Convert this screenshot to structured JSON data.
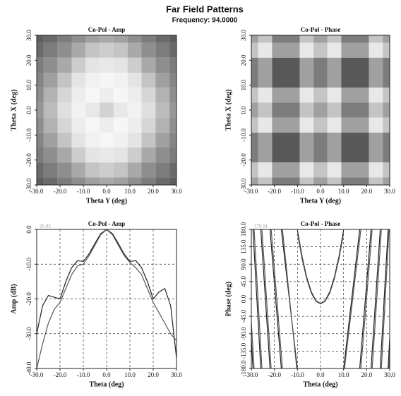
{
  "title": "Far Field Patterns",
  "subtitle": "Frequency: 94.0000",
  "chart_data": [
    {
      "type": "heatmap",
      "title": "Co-Pol - Amp",
      "xlabel": "Theta Y (deg)",
      "ylabel": "Theta X (deg)",
      "x": [
        -30,
        -24,
        -18,
        -12,
        -6,
        0,
        6,
        12,
        18,
        24,
        30
      ],
      "y": [
        30,
        24,
        18,
        12,
        6,
        0,
        -6,
        -12,
        -18,
        -24,
        -30
      ],
      "z": [
        [
          -35,
          -32,
          -28,
          -24,
          -20,
          -18,
          -20,
          -24,
          -28,
          -32,
          -35
        ],
        [
          -32,
          -28,
          -24,
          -18,
          -12,
          -10,
          -12,
          -18,
          -24,
          -28,
          -32
        ],
        [
          -28,
          -24,
          -18,
          -10,
          -5,
          -4,
          -5,
          -10,
          -18,
          -24,
          -28
        ],
        [
          -26,
          -20,
          -12,
          -5,
          -2,
          -1,
          -2,
          -5,
          -12,
          -20,
          -26
        ],
        [
          -24,
          -16,
          -8,
          -3,
          -1,
          -3,
          -1,
          -3,
          -8,
          -16,
          -24
        ],
        [
          -22,
          -14,
          -6,
          -2,
          -4,
          -9,
          -4,
          -2,
          -6,
          -14,
          -22
        ],
        [
          -24,
          -16,
          -8,
          -3,
          -1,
          -3,
          -1,
          -3,
          -8,
          -16,
          -24
        ],
        [
          -26,
          -20,
          -12,
          -5,
          -2,
          -1,
          -2,
          -5,
          -12,
          -20,
          -26
        ],
        [
          -28,
          -24,
          -18,
          -10,
          -5,
          -4,
          -5,
          -10,
          -18,
          -24,
          -28
        ],
        [
          -32,
          -28,
          -24,
          -18,
          -12,
          -10,
          -12,
          -18,
          -24,
          -28,
          -32
        ],
        [
          -35,
          -32,
          -28,
          -24,
          -20,
          -18,
          -20,
          -24,
          -28,
          -32,
          -35
        ]
      ],
      "zlim": [
        -40,
        0
      ],
      "xlim": [
        -30,
        30
      ],
      "ylim": [
        -30,
        30
      ],
      "xticks": [
        {
          "value": -30,
          "label": "-30.0"
        },
        {
          "value": -20,
          "label": "-20.0"
        },
        {
          "value": -10,
          "label": "-10.0"
        },
        {
          "value": 0,
          "label": "0.0"
        },
        {
          "value": 10,
          "label": "10.0"
        },
        {
          "value": 20,
          "label": "20.0"
        },
        {
          "value": 30,
          "label": "30.0"
        }
      ],
      "yticks": [
        {
          "value": -30,
          "label": "-30.0"
        },
        {
          "value": -20,
          "label": "-20.0"
        },
        {
          "value": -10,
          "label": "-10.0"
        },
        {
          "value": 0,
          "label": "0.0"
        },
        {
          "value": 10,
          "label": "10.0"
        },
        {
          "value": 20,
          "label": "20.0"
        },
        {
          "value": 30,
          "label": "30.0"
        }
      ]
    },
    {
      "type": "heatmap",
      "title": "Co-Pol - Phase",
      "xlabel": "Theta Y (deg)",
      "ylabel": "Theta X (deg)",
      "x": [
        -30,
        -24,
        -18,
        -12,
        -6,
        0,
        6,
        12,
        18,
        24,
        30
      ],
      "y": [
        30,
        24,
        18,
        12,
        6,
        0,
        -6,
        -12,
        -18,
        -24,
        -30
      ],
      "z": [
        [
          0,
          72,
          -72,
          -72,
          72,
          0,
          72,
          -72,
          -72,
          72,
          0
        ],
        [
          72,
          144,
          0,
          0,
          144,
          72,
          144,
          0,
          0,
          144,
          72
        ],
        [
          -72,
          0,
          -144,
          -144,
          0,
          -72,
          0,
          -144,
          -144,
          0,
          -72
        ],
        [
          -72,
          0,
          -144,
          -144,
          0,
          -72,
          0,
          -144,
          -144,
          0,
          -72
        ],
        [
          72,
          144,
          0,
          0,
          144,
          72,
          144,
          0,
          0,
          144,
          72
        ],
        [
          0,
          72,
          -72,
          -72,
          72,
          0,
          72,
          -72,
          -72,
          72,
          0
        ],
        [
          72,
          144,
          0,
          0,
          144,
          72,
          144,
          0,
          0,
          144,
          72
        ],
        [
          -72,
          0,
          -144,
          -144,
          0,
          -72,
          0,
          -144,
          -144,
          0,
          -72
        ],
        [
          -72,
          0,
          -144,
          -144,
          0,
          -72,
          0,
          -144,
          -144,
          0,
          -72
        ],
        [
          72,
          144,
          0,
          0,
          144,
          72,
          144,
          0,
          0,
          144,
          72
        ],
        [
          0,
          72,
          -72,
          -72,
          72,
          0,
          72,
          -72,
          -72,
          72,
          0
        ]
      ],
      "zlim": [
        -180,
        180
      ],
      "xlim": [
        -30,
        30
      ],
      "ylim": [
        -30,
        30
      ],
      "xticks": [
        {
          "value": -30,
          "label": "-30.0"
        },
        {
          "value": -20,
          "label": "-20.0"
        },
        {
          "value": -10,
          "label": "-10.0"
        },
        {
          "value": 0,
          "label": "0.0"
        },
        {
          "value": 10,
          "label": "10.0"
        },
        {
          "value": 20,
          "label": "20.0"
        },
        {
          "value": 30,
          "label": "30.0"
        }
      ],
      "yticks": [
        {
          "value": -30,
          "label": "-30.0"
        },
        {
          "value": -20,
          "label": "-20.0"
        },
        {
          "value": -10,
          "label": "-10.0"
        },
        {
          "value": 0,
          "label": "0.0"
        },
        {
          "value": 10,
          "label": "10.0"
        },
        {
          "value": 20,
          "label": "20.0"
        },
        {
          "value": 30,
          "label": "30.0"
        }
      ]
    },
    {
      "type": "line",
      "title": "Co-Pol - Amp",
      "xlabel": "Theta (deg)",
      "ylabel": "Amp (dB)",
      "annotation": "26.93",
      "grid": true,
      "x": [
        -30,
        -27.5,
        -25,
        -22.5,
        -20,
        -17.5,
        -15,
        -12.5,
        -10,
        -7.5,
        -5,
        -2.5,
        0,
        2.5,
        5,
        7.5,
        10,
        12.5,
        15,
        17.5,
        20,
        22.5,
        25,
        27.5,
        30
      ],
      "series": [
        {
          "color": "#222222",
          "values": [
            -30,
            -22,
            -19,
            -19.5,
            -20,
            -15,
            -11,
            -9,
            -9.2,
            -7,
            -4,
            -1.2,
            0,
            -1.2,
            -4,
            -7,
            -9.2,
            -9,
            -11,
            -15,
            -20,
            -18,
            -17,
            -22,
            -37
          ]
        },
        {
          "color": "#555555",
          "values": [
            -40,
            -33,
            -27,
            -23,
            -21,
            -17,
            -13,
            -10.5,
            -10,
            -7.5,
            -4.5,
            -1.5,
            0,
            -1.5,
            -4.5,
            -7.5,
            -9.5,
            -11,
            -13,
            -17,
            -21,
            -24,
            -27,
            -30,
            -32
          ]
        }
      ],
      "xlim": [
        -30,
        30
      ],
      "ylim": [
        -40,
        0
      ],
      "xticks": [
        {
          "value": -30,
          "label": "-30.0"
        },
        {
          "value": -20,
          "label": "-20.0"
        },
        {
          "value": -10,
          "label": "-10.0"
        },
        {
          "value": 0,
          "label": "0.0"
        },
        {
          "value": 10,
          "label": "10.0"
        },
        {
          "value": 20,
          "label": "20.0"
        },
        {
          "value": 30,
          "label": "30.0"
        }
      ],
      "yticks": [
        {
          "value": -40,
          "label": "-40.0"
        },
        {
          "value": -30,
          "label": "-30.0"
        },
        {
          "value": -20,
          "label": "-20.0"
        },
        {
          "value": -10,
          "label": "-10.0"
        },
        {
          "value": 0,
          "label": "0.0"
        }
      ]
    },
    {
      "type": "line",
      "title": "Co-Pol - Phase",
      "xlabel": "Theta (deg)",
      "ylabel": "Phase (deg)",
      "annotation": "179.91",
      "grid": true,
      "series": [
        {
          "color": "#222222",
          "x": [
            -30,
            -29.3,
            -29.3,
            -29.3,
            -25.9,
            -25.9,
            -25.9,
            -21.9,
            -21.9,
            -21.9,
            -17,
            -17,
            -17,
            -10.05,
            -10.05,
            -10,
            -8,
            -6,
            -4,
            -2,
            0,
            2,
            4,
            6,
            8,
            10,
            10.05,
            10.05,
            17,
            17,
            17,
            21.9,
            21.9,
            21.9,
            25.9,
            25.9,
            25.9,
            29.3,
            29.3,
            29.3,
            30
          ],
          "values": [
            -102,
            -180,
            null,
            180,
            -180,
            null,
            180,
            -180,
            null,
            180,
            -180,
            null,
            180,
            -180,
            null,
            178,
            109.6,
            56.4,
            18.4,
            -4.4,
            -12,
            -4.4,
            18.4,
            56.4,
            109.6,
            178,
            null,
            -180,
            180,
            null,
            -180,
            180,
            null,
            -180,
            180,
            null,
            -180,
            180,
            null,
            -180,
            -102
          ]
        },
        {
          "color": "#555555",
          "x": [
            -30,
            -28.8,
            -28.8,
            -28.8,
            -25.4,
            -25.4,
            -25.4,
            -21.4,
            -21.4,
            -21.4,
            -16.5,
            -16.5,
            -16.5,
            -10.3,
            -10.3,
            -10,
            -8,
            -6,
            -4,
            -2,
            0,
            2,
            4,
            6,
            8,
            10,
            10.4,
            10.4,
            17.5,
            17.5,
            17.5,
            22.4,
            22.4,
            22.4,
            26.4,
            26.4,
            26.4,
            29.7,
            29.7,
            29.7,
            30
          ],
          "values": [
            -60,
            -180,
            null,
            180,
            -180,
            null,
            180,
            -180,
            null,
            180,
            -180,
            null,
            180,
            -180,
            null,
            170,
            104,
            52,
            15,
            -6,
            -13,
            -6,
            15,
            52,
            104,
            170,
            null,
            -180,
            180,
            null,
            -180,
            180,
            null,
            -180,
            180,
            null,
            -180,
            180,
            null,
            -180,
            -140
          ]
        }
      ],
      "xlim": [
        -30,
        30
      ],
      "ylim": [
        -180,
        180
      ],
      "xticks": [
        {
          "value": -30,
          "label": "-30.0"
        },
        {
          "value": -20,
          "label": "-20.0"
        },
        {
          "value": -10,
          "label": "-10.0"
        },
        {
          "value": 0,
          "label": "0.0"
        },
        {
          "value": 10,
          "label": "10.0"
        },
        {
          "value": 20,
          "label": "20.0"
        },
        {
          "value": 30,
          "label": "30.0"
        }
      ],
      "yticks": [
        {
          "value": -180,
          "label": "-180.0"
        },
        {
          "value": -135,
          "label": "-135.0"
        },
        {
          "value": -90,
          "label": "-90.0"
        },
        {
          "value": -45,
          "label": "-45.0"
        },
        {
          "value": 0,
          "label": "0.0"
        },
        {
          "value": 45,
          "label": "45.0"
        },
        {
          "value": 90,
          "label": "90.0"
        },
        {
          "value": 135,
          "label": "135.0"
        },
        {
          "value": 180,
          "label": "180.0"
        }
      ]
    }
  ]
}
